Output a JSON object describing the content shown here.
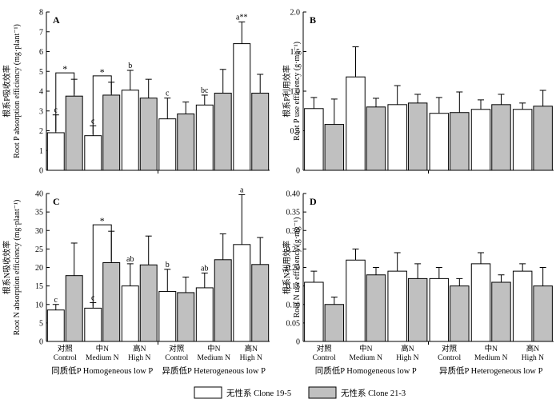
{
  "chart_data": [
    {
      "type": "bar",
      "panel": "A",
      "ylabel_cn": "根系P吸收效率",
      "ylabel_en": "Root P absorption efficiency (mg·plant⁻¹)",
      "ylim": [
        0,
        8
      ],
      "yticks": [
        "0",
        "1",
        "2",
        "3",
        "4",
        "5",
        "6",
        "7",
        "8"
      ],
      "series": [
        {
          "name": "无性系 Clone 19-5",
          "values": [
            1.9,
            1.75,
            4.05,
            2.6,
            3.3,
            6.4
          ],
          "errors": [
            0.9,
            0.5,
            1.0,
            1.05,
            0.5,
            1.1
          ],
          "labels": [
            "c",
            "c",
            "b",
            "c",
            "bc",
            "a**"
          ]
        },
        {
          "name": "无性系 Clone 21-3",
          "values": [
            3.75,
            3.8,
            3.65,
            2.85,
            3.9,
            3.9
          ],
          "errors": [
            0.85,
            0.65,
            0.95,
            0.6,
            1.2,
            0.95
          ],
          "labels": [
            "",
            "",
            "",
            "",
            "",
            ""
          ]
        }
      ],
      "significance": [
        0,
        1
      ]
    },
    {
      "type": "bar",
      "panel": "B",
      "ylabel_cn": "根系P利用效率",
      "ylabel_en": "Root P use efficiency (g·mg⁻¹)",
      "ylim": [
        0,
        2.0
      ],
      "yticks": [
        "0",
        "0.5",
        "1.0",
        "1.5",
        "2.0"
      ],
      "series": [
        {
          "name": "无性系 Clone 19-5",
          "values": [
            0.78,
            1.18,
            0.83,
            0.72,
            0.77,
            0.77
          ],
          "errors": [
            0.14,
            0.38,
            0.24,
            0.2,
            0.12,
            0.08
          ],
          "labels": [
            "",
            "",
            "",
            "",
            "",
            ""
          ]
        },
        {
          "name": "无性系 Clone 21-3",
          "values": [
            0.58,
            0.8,
            0.85,
            0.73,
            0.83,
            0.81
          ],
          "errors": [
            0.32,
            0.11,
            0.11,
            0.26,
            0.13,
            0.2
          ],
          "labels": [
            "",
            "",
            "",
            "",
            "",
            ""
          ]
        }
      ],
      "significance": []
    },
    {
      "type": "bar",
      "panel": "C",
      "ylabel_cn": "根系N吸收效率",
      "ylabel_en": "Root N absorption efficiency (mg·plant⁻¹)",
      "ylim": [
        0,
        40
      ],
      "yticks": [
        "0",
        "5",
        "10",
        "15",
        "20",
        "25",
        "30",
        "35",
        "40"
      ],
      "series": [
        {
          "name": "无性系 Clone 19-5",
          "values": [
            8.5,
            9.0,
            15.0,
            13.5,
            14.5,
            26.2
          ],
          "errors": [
            1.5,
            1.5,
            6.0,
            6.0,
            4.0,
            13.5
          ],
          "labels": [
            "c",
            "c",
            "ab",
            "b",
            "ab",
            "a"
          ]
        },
        {
          "name": "无性系 Clone 21-3",
          "values": [
            17.8,
            21.3,
            20.7,
            13.2,
            22.1,
            20.8
          ],
          "errors": [
            8.8,
            8.5,
            7.8,
            4.2,
            7.0,
            7.3
          ],
          "labels": [
            "",
            "",
            "",
            "",
            "",
            ""
          ]
        }
      ],
      "significance": [
        1
      ]
    },
    {
      "type": "bar",
      "panel": "D",
      "ylabel_cn": "根系N利用效率",
      "ylabel_en": "Root N use efficiency (g·mg⁻¹)",
      "ylim": [
        0,
        0.4
      ],
      "yticks": [
        "0",
        "0.05",
        "0.10",
        "0.15",
        "0.20",
        "0.25",
        "0.30",
        "0.35",
        "0.40"
      ],
      "series": [
        {
          "name": "无性系 Clone 19-5",
          "values": [
            0.16,
            0.22,
            0.19,
            0.17,
            0.21,
            0.19
          ],
          "errors": [
            0.03,
            0.03,
            0.05,
            0.03,
            0.03,
            0.02
          ],
          "labels": [
            "",
            "",
            "",
            "",
            "",
            ""
          ]
        },
        {
          "name": "无性系 Clone 21-3",
          "values": [
            0.1,
            0.18,
            0.17,
            0.15,
            0.16,
            0.15
          ],
          "errors": [
            0.02,
            0.02,
            0.04,
            0.02,
            0.02,
            0.05
          ],
          "labels": [
            "",
            "",
            "",
            "",
            "",
            ""
          ]
        }
      ],
      "significance": []
    }
  ],
  "categories": [
    {
      "cn": "对照",
      "en": "Control"
    },
    {
      "cn": "中N",
      "en": "Medium N"
    },
    {
      "cn": "高N",
      "en": "High N"
    },
    {
      "cn": "对照",
      "en": "Control"
    },
    {
      "cn": "中N",
      "en": "Medium N"
    },
    {
      "cn": "高N",
      "en": "High N"
    }
  ],
  "groups": [
    {
      "cn": "同质低P",
      "en": "Homogeneous low P"
    },
    {
      "cn": "异质低P",
      "en": "Heterogeneous low P"
    }
  ],
  "legend": [
    {
      "label": "无性系 Clone 19-5",
      "color": "#ffffff"
    },
    {
      "label": "无性系 Clone 21-3",
      "color": "#c0c0c0"
    }
  ],
  "colors": {
    "series1": "#ffffff",
    "series2": "#c0c0c0",
    "stroke": "#000000"
  }
}
